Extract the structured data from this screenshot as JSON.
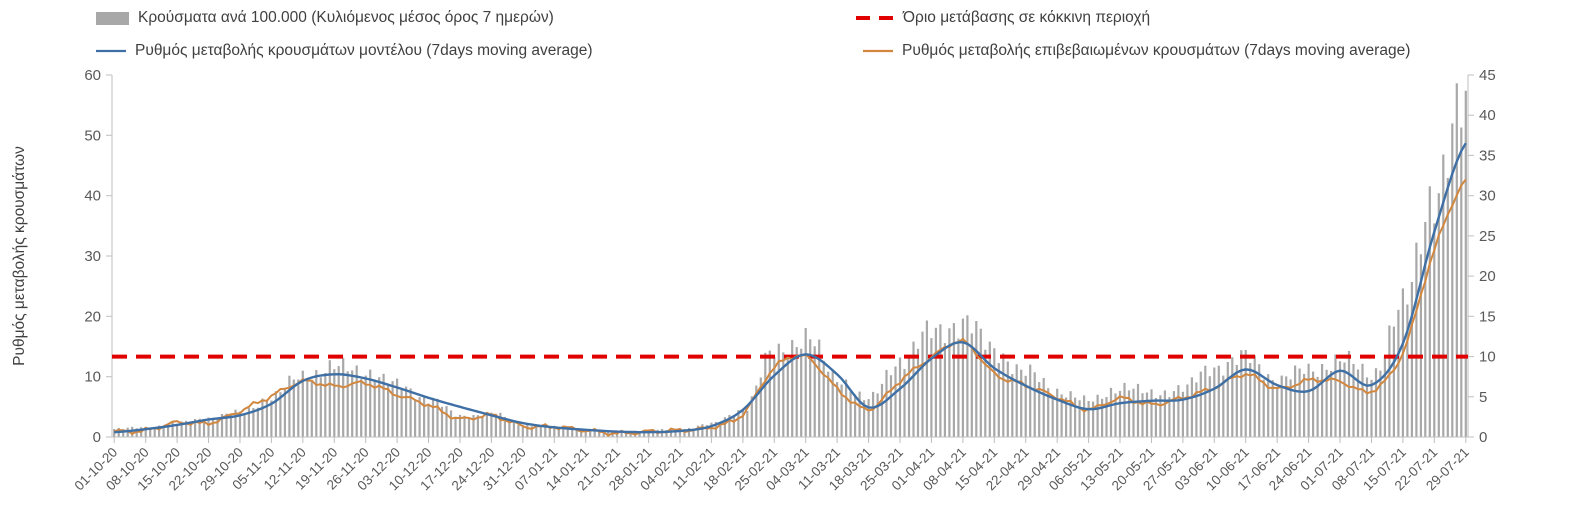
{
  "chart_data": {
    "type": "combo-bar-line",
    "title": "",
    "x_tick_labels": [
      "01-10-20",
      "08-10-20",
      "15-10-20",
      "22-10-20",
      "29-10-20",
      "05-11-20",
      "12-11-20",
      "19-11-20",
      "26-11-20",
      "03-12-20",
      "10-12-20",
      "17-12-20",
      "24-12-20",
      "31-12-20",
      "07-01-21",
      "14-01-21",
      "21-01-21",
      "28-01-21",
      "04-02-21",
      "11-02-21",
      "18-02-21",
      "25-02-21",
      "04-03-21",
      "11-03-21",
      "18-03-21",
      "25-03-21",
      "01-04-21",
      "08-04-21",
      "15-04-21",
      "22-04-21",
      "29-04-21",
      "06-05-21",
      "13-05-21",
      "20-05-21",
      "27-05-21",
      "03-06-21",
      "10-06-21",
      "17-06-21",
      "24-06-21",
      "01-07-21",
      "08-07-21",
      "15-07-21",
      "22-07-21",
      "29-07-21"
    ],
    "days_between_ticks": 7,
    "left_axis": {
      "label": "Ρυθμός μεταβολής κρουσμάτων",
      "ticks": [
        0,
        10,
        20,
        30,
        40,
        50,
        60
      ],
      "max": 60
    },
    "right_axis": {
      "label": "",
      "ticks": [
        0,
        5,
        10,
        15,
        20,
        25,
        30,
        35,
        40,
        45
      ],
      "max": 45
    },
    "threshold": {
      "name": "Όριο μετάβασης σε κόκκινη περιοχή",
      "axis": "right",
      "value": 10
    },
    "series": [
      {
        "name": "Κρούσματα ανά 100.000 (Κυλιόμενος μέσος όρος 7 ημερών)",
        "type": "bar",
        "axis": "right",
        "weekly_values": [
          1.0,
          1.2,
          1.7,
          2.4,
          3.0,
          5.0,
          7.6,
          8.6,
          8.2,
          6.4,
          4.8,
          2.6,
          2.9,
          1.5,
          1.2,
          1.0,
          0.7,
          0.8,
          1.0,
          1.6,
          3.4,
          10.5,
          12.4,
          7.4,
          4.6,
          9.6,
          12.9,
          14.4,
          10.8,
          8.0,
          5.8,
          4.4,
          6.2,
          5.4,
          6.0,
          8.8,
          9.8,
          7.2,
          8.2,
          9.6,
          7.8,
          16.0,
          31.0,
          40.5
        ]
      },
      {
        "name": "Ρυθμός μεταβολής κρουσμάτων μοντέλου (7days moving average)",
        "type": "line",
        "axis": "left",
        "weekly_values": [
          0.8,
          1.3,
          2.0,
          2.9,
          3.6,
          5.5,
          9.3,
          10.4,
          9.7,
          8.2,
          6.5,
          5.0,
          3.6,
          2.3,
          1.6,
          1.2,
          0.9,
          0.8,
          1.0,
          1.8,
          4.5,
          10.2,
          13.7,
          10.4,
          4.9,
          8.0,
          13.0,
          15.7,
          11.4,
          8.5,
          6.2,
          4.6,
          5.6,
          6.0,
          6.2,
          8.0,
          11.2,
          8.6,
          7.6,
          11.0,
          8.6,
          15.5,
          34.0,
          48.7
        ]
      },
      {
        "name": "Ρυθμός μεταβολής επιβεβαιωμένων κρουσμάτων (7days moving average)",
        "type": "line",
        "axis": "left",
        "weekly_values": [
          0.9,
          1.1,
          2.4,
          2.3,
          4.3,
          6.8,
          9.2,
          8.4,
          8.9,
          7.0,
          5.3,
          3.0,
          3.6,
          1.8,
          1.7,
          1.1,
          0.6,
          0.9,
          1.1,
          1.6,
          3.8,
          11.5,
          13.3,
          8.0,
          4.6,
          9.3,
          13.2,
          15.8,
          10.5,
          8.6,
          6.6,
          4.6,
          6.4,
          5.4,
          6.5,
          8.2,
          10.4,
          8.0,
          9.4,
          9.2,
          7.6,
          14.0,
          31.0,
          42.5
        ]
      }
    ],
    "colors": {
      "bars": "#a8a8a8",
      "model": "#3e6fa5",
      "confirmed": "#d2873f",
      "threshold": "#e10000",
      "axis_line": "#bfbfbf",
      "tick_label": "#595959",
      "legend_text": "#404040"
    },
    "legend_position": "top"
  }
}
